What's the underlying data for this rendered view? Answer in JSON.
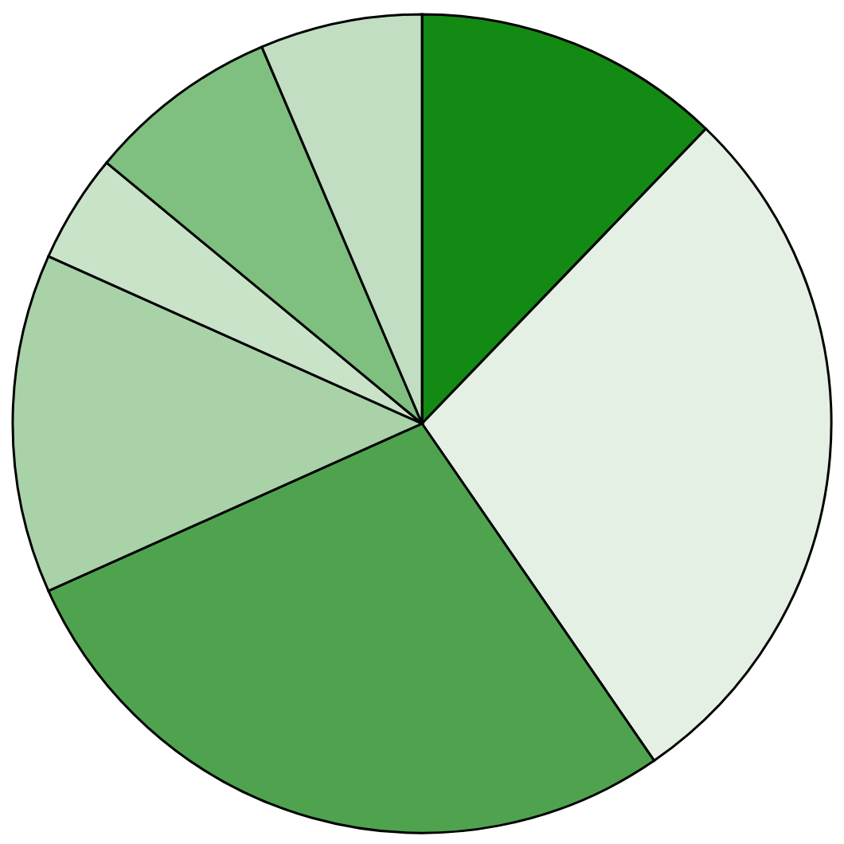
{
  "chart_data": {
    "type": "pie",
    "categories": [
      null,
      null,
      null,
      null,
      null,
      null,
      null
    ],
    "values": [
      12.2,
      28.2,
      27.9,
      13.4,
      4.3,
      7.6,
      6.4
    ],
    "colors": [
      "#138a13",
      "#e4f0e4",
      "#4fa34f",
      "#a9d2a9",
      "#c9e3c9",
      "#7fbf7f",
      "#c2dec2"
    ],
    "legend": false
  }
}
